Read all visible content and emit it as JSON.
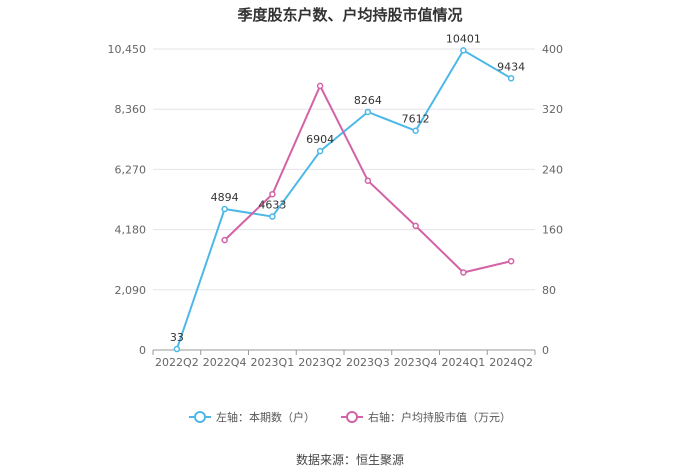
{
  "title": "季度股东户数、户均持股市值情况",
  "source": "数据来源：恒生聚源",
  "colors": {
    "left_series": "#4db8e8",
    "right_series": "#d462a6"
  },
  "chart_data": {
    "type": "line",
    "title": "季度股东户数、户均持股市值情况",
    "categories": [
      "2022Q2",
      "2022Q4",
      "2023Q1",
      "2023Q2",
      "2023Q3",
      "2023Q4",
      "2024Q1",
      "2024Q2"
    ],
    "left_axis": {
      "ylim": [
        0,
        10450
      ],
      "ticks": [
        "0",
        "2,090",
        "4,180",
        "6,270",
        "8,360",
        "10,450"
      ]
    },
    "right_axis": {
      "ylim": [
        0,
        400
      ],
      "ticks": [
        "0",
        "80",
        "160",
        "240",
        "320",
        "400"
      ]
    },
    "series": [
      {
        "name": "左轴：本期数（户）",
        "axis": "left",
        "values": [
          33,
          4894,
          4633,
          6904,
          8264,
          7612,
          10401,
          9434
        ],
        "labels": [
          "33",
          "4894",
          "4633",
          "6904",
          "8264",
          "7612",
          "10401",
          "9434"
        ]
      },
      {
        "name": "右轴：户均持股市值（万元）",
        "axis": "right",
        "values": [
          null,
          146,
          207,
          351,
          225,
          165,
          103,
          118
        ]
      }
    ],
    "grid": true,
    "legend_position": "bottom"
  }
}
